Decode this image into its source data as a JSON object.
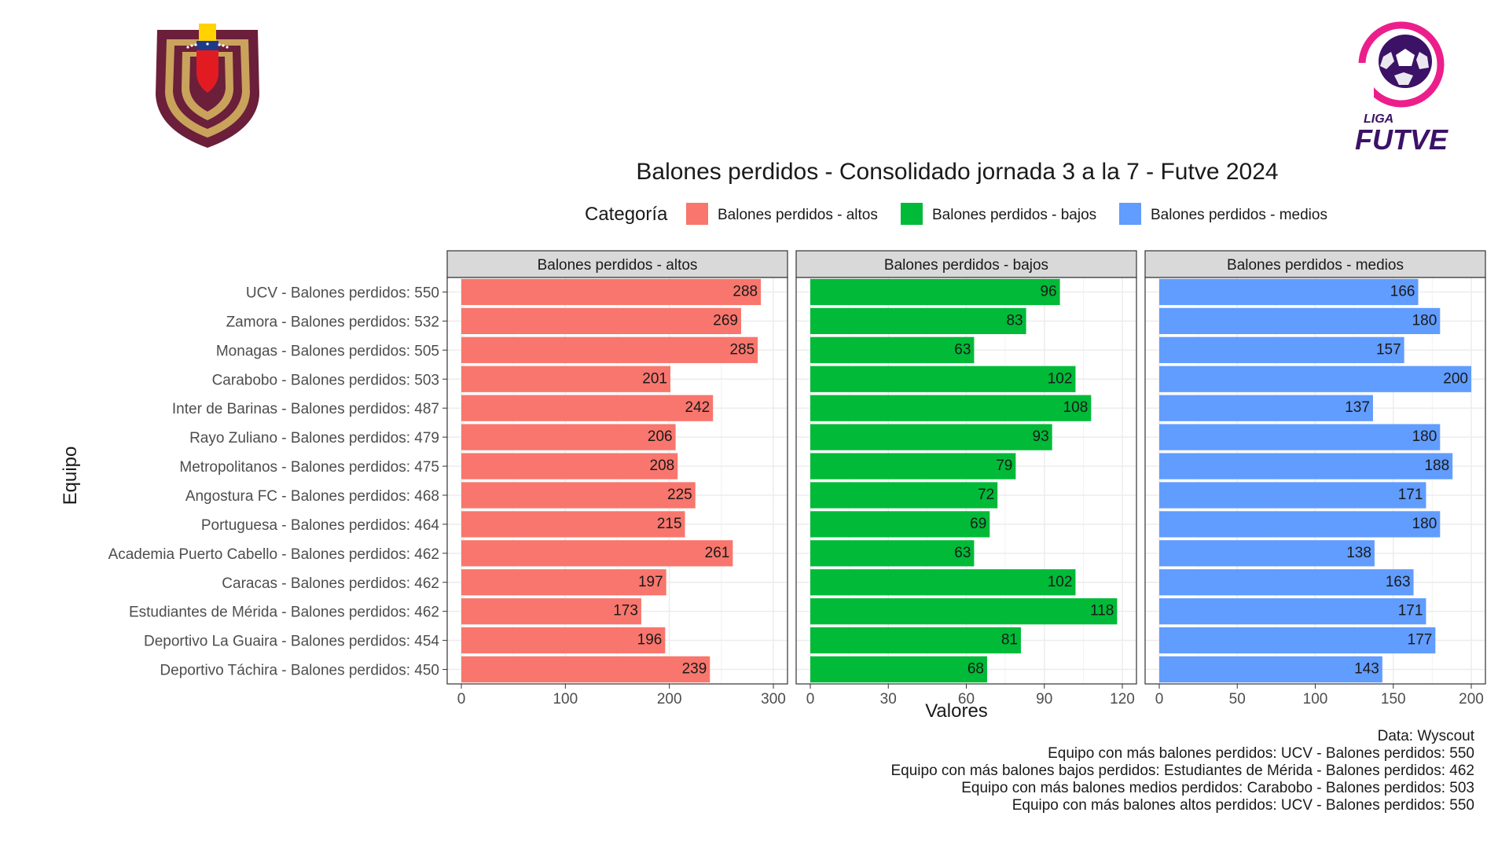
{
  "chart_data": {
    "type": "bar",
    "orientation": "horizontal",
    "title": "Balones perdidos - Consolidado jornada 3 a la 7 - Futve 2024",
    "xlabel": "Valores",
    "ylabel": "Equipo",
    "legend": {
      "title": "Categoría",
      "placement": "top",
      "entries": [
        {
          "label": "Balones perdidos - altos",
          "color": "#F8766D"
        },
        {
          "label": "Balones perdidos - bajos",
          "color": "#00BA38"
        },
        {
          "label": "Balones perdidos - medios",
          "color": "#619CFF"
        }
      ]
    },
    "categories": [
      "UCV - Balones perdidos: 550",
      "Zamora - Balones perdidos: 532",
      "Monagas - Balones perdidos: 505",
      "Carabobo - Balones perdidos: 503",
      "Inter de Barinas - Balones perdidos: 487",
      "Rayo Zuliano - Balones perdidos: 479",
      "Metropolitanos - Balones perdidos: 475",
      "Angostura FC - Balones perdidos: 468",
      "Portuguesa - Balones perdidos: 464",
      "Academia Puerto Cabello - Balones perdidos: 462",
      "Caracas - Balones perdidos: 462",
      "Estudiantes de Mérida - Balones perdidos: 462",
      "Deportivo La Guaira - Balones perdidos: 454",
      "Deportivo Táchira - Balones perdidos: 450"
    ],
    "series": [
      {
        "name": "Balones perdidos - altos",
        "color": "#F8766D",
        "values": [
          288,
          269,
          285,
          201,
          242,
          206,
          208,
          225,
          215,
          261,
          197,
          173,
          196,
          239
        ],
        "xlim": [
          0,
          300
        ],
        "ticks": [
          0,
          100,
          200,
          300
        ]
      },
      {
        "name": "Balones perdidos - bajos",
        "color": "#00BA38",
        "values": [
          96,
          83,
          63,
          102,
          108,
          93,
          79,
          72,
          69,
          63,
          102,
          118,
          81,
          68
        ],
        "xlim": [
          0,
          120
        ],
        "ticks": [
          0,
          30,
          60,
          90,
          120
        ]
      },
      {
        "name": "Balones perdidos - medios",
        "color": "#619CFF",
        "values": [
          166,
          180,
          157,
          200,
          137,
          180,
          188,
          171,
          180,
          138,
          163,
          171,
          177,
          143
        ],
        "xlim": [
          0,
          200
        ],
        "ticks": [
          0,
          50,
          100,
          150,
          200
        ]
      }
    ],
    "grid": true,
    "caption": [
      "Data: Wyscout",
      "Equipo con más balones perdidos: UCV - Balones perdidos: 550",
      "Equipo con más balones bajos perdidos: Estudiantes de Mérida - Balones perdidos: 462",
      "Equipo con más balones medios perdidos: Carabobo - Balones perdidos: 503",
      "Equipo con más balones altos perdidos: UCV - Balones perdidos: 550"
    ]
  },
  "logos": {
    "left": {
      "name": "federation-crest",
      "colors": {
        "maroon": "#6B1F3A",
        "gold": "#C9A35B",
        "yellow": "#FFD200",
        "blue": "#1E3A8A",
        "red": "#E21B23"
      }
    },
    "right": {
      "text_top": "LIGA",
      "text_bottom": "FUTVE",
      "colors": {
        "pink": "#EC1E8C",
        "purple": "#3B1266"
      }
    }
  }
}
